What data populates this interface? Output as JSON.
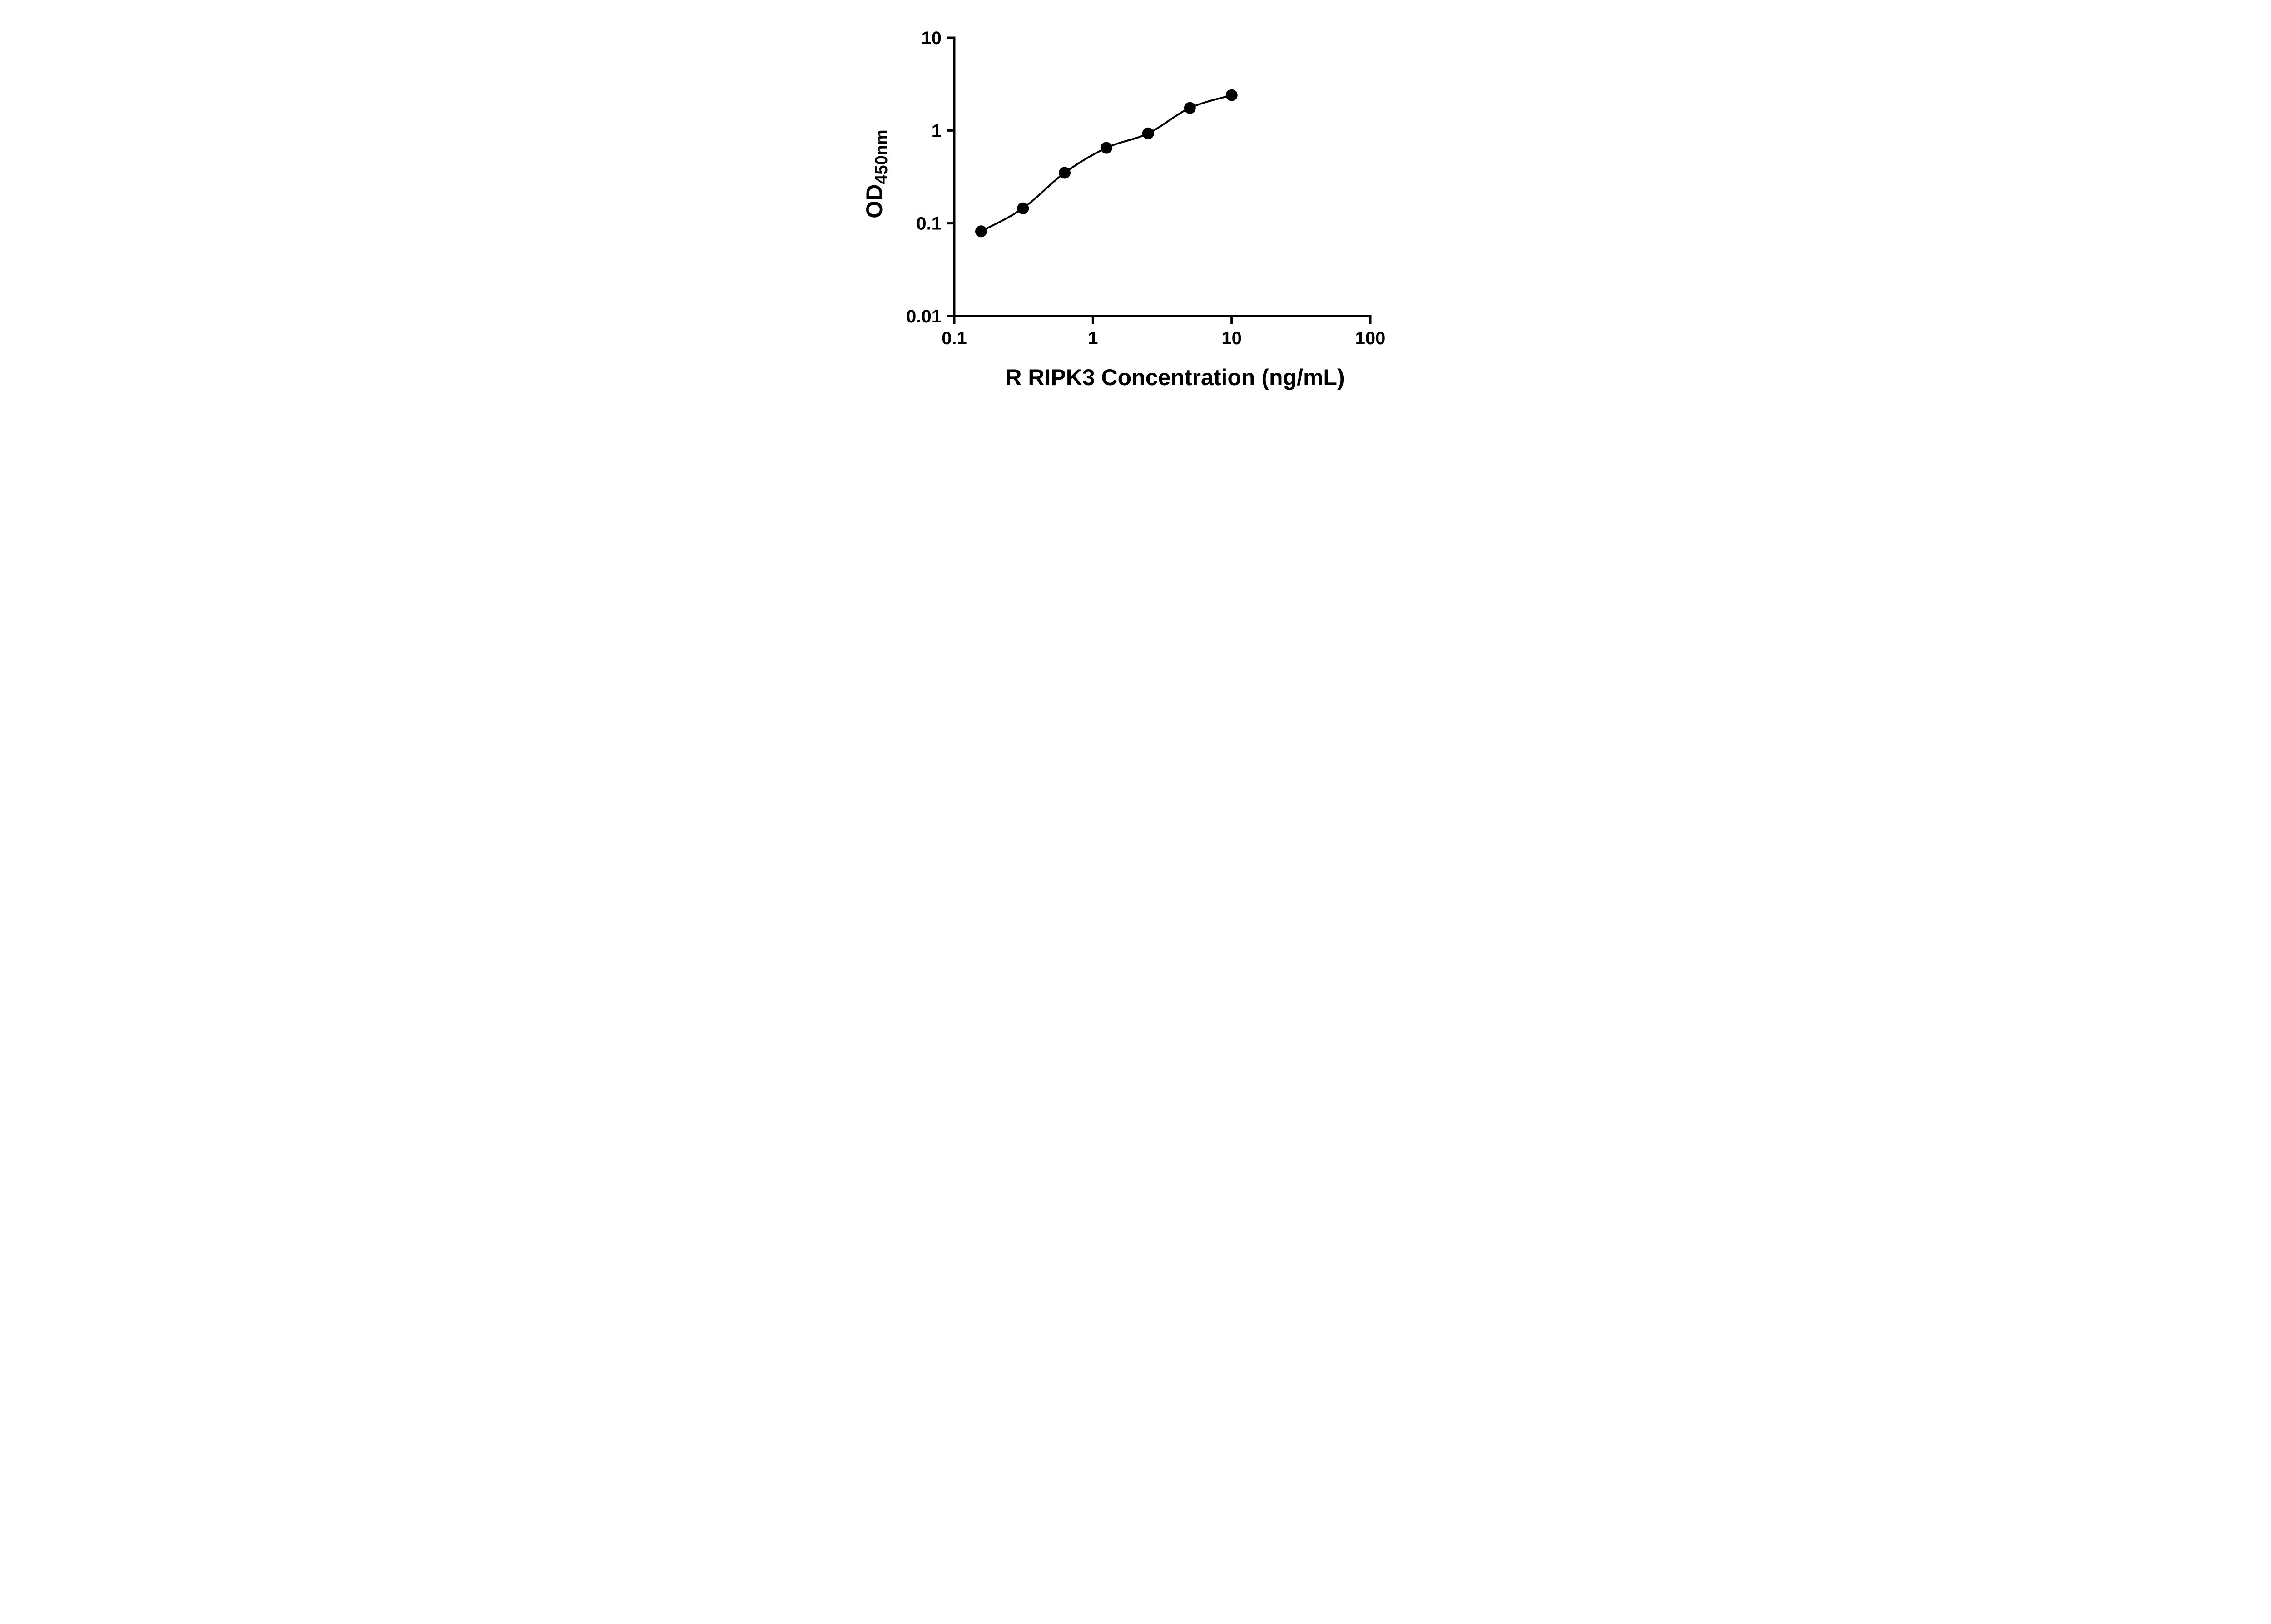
{
  "chart_data": {
    "type": "scatter",
    "title": "",
    "xlabel": "R RIPK3 Concentration (ng/mL)",
    "ylabel_main": "OD",
    "ylabel_sub": "450nm",
    "x_scale": "log",
    "y_scale": "log",
    "xlim": [
      0.1,
      100
    ],
    "ylim": [
      0.01,
      10
    ],
    "x_ticks": [
      0.1,
      1,
      10,
      100
    ],
    "x_tick_labels": [
      "0.1",
      "1",
      "10",
      "100"
    ],
    "y_ticks": [
      0.01,
      0.1,
      1,
      10
    ],
    "y_tick_labels": [
      "0.01",
      "0.1",
      "1",
      "10"
    ],
    "points": [
      {
        "x": 0.156,
        "y": 0.082
      },
      {
        "x": 0.313,
        "y": 0.145
      },
      {
        "x": 0.625,
        "y": 0.35
      },
      {
        "x": 1.25,
        "y": 0.65
      },
      {
        "x": 2.5,
        "y": 0.93
      },
      {
        "x": 5,
        "y": 1.75
      },
      {
        "x": 10,
        "y": 2.4
      }
    ],
    "grid": false,
    "legend": false,
    "line_color": "#000000",
    "marker_color": "#000000",
    "background_color": "#ffffff"
  }
}
